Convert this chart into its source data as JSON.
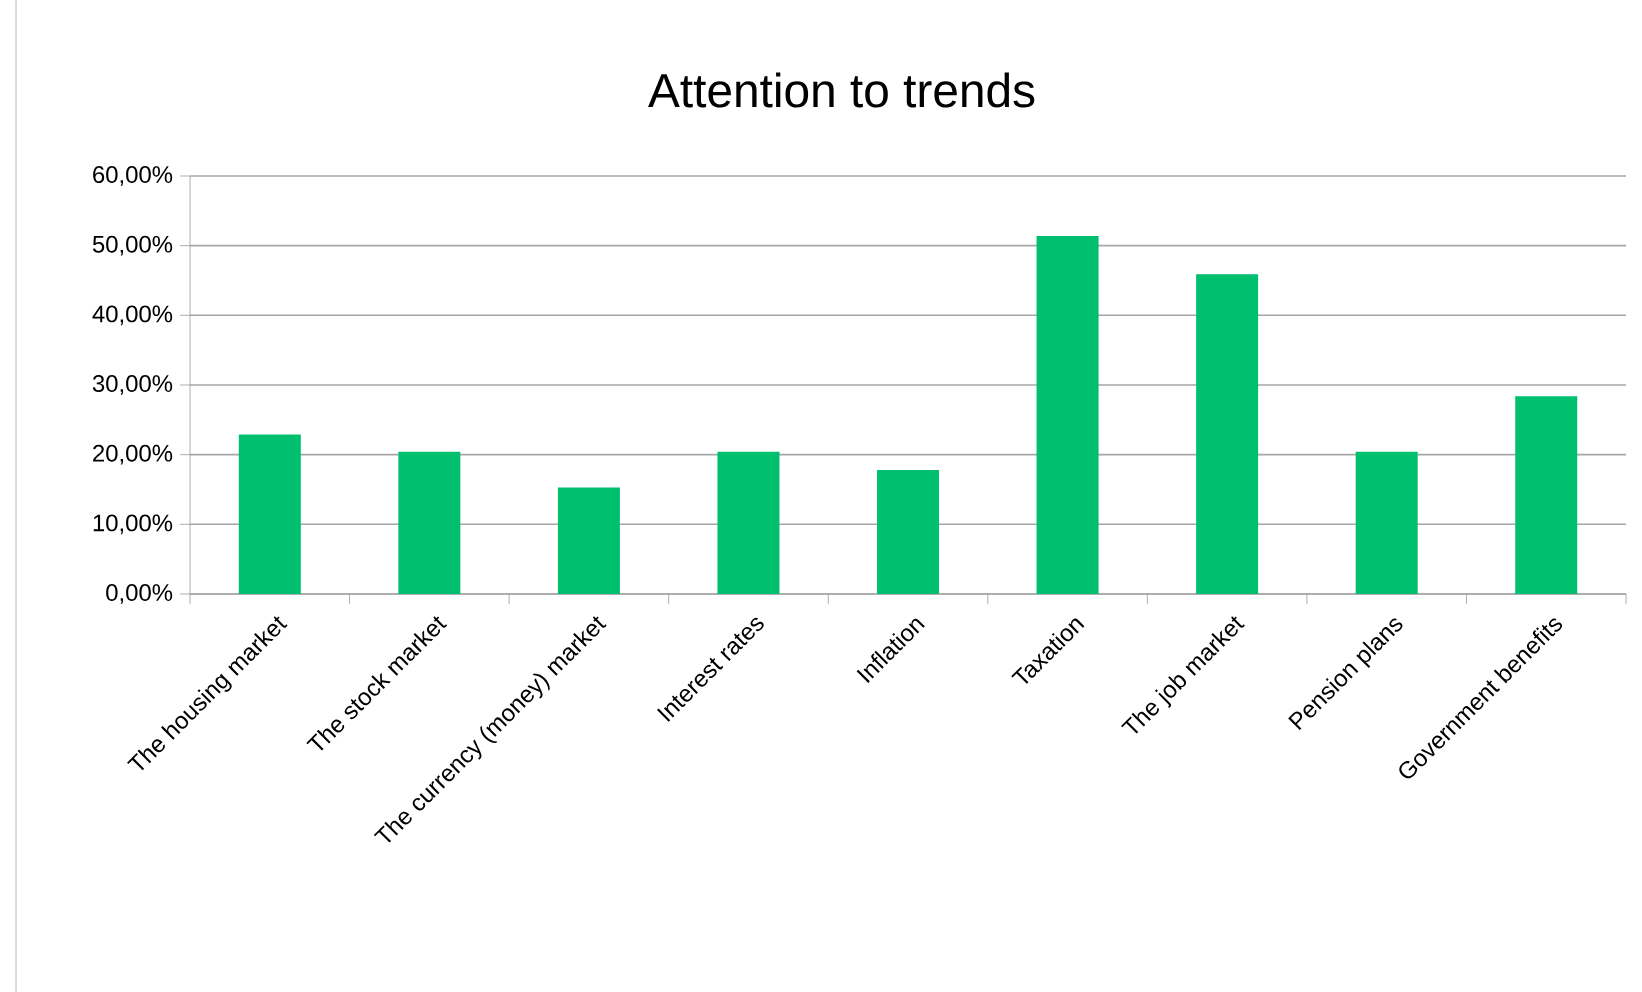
{
  "chart_data": {
    "type": "bar",
    "title": "Attention to trends",
    "categories": [
      "The housing market",
      "The stock market",
      "The currency (money) market",
      "Interest rates",
      "Inflation",
      "Taxation",
      "The job market",
      "Pension plans",
      "Government benefits"
    ],
    "values": [
      22.9,
      20.4,
      15.3,
      20.4,
      17.8,
      51.4,
      45.9,
      20.4,
      28.4
    ],
    "color": "#00bf6f",
    "ylim": [
      0,
      60
    ],
    "yticks": [
      {
        "value": 0,
        "label": "0,00%"
      },
      {
        "value": 10,
        "label": "10,00%"
      },
      {
        "value": 20,
        "label": "20,00%"
      },
      {
        "value": 30,
        "label": "30,00%"
      },
      {
        "value": 40,
        "label": "40,00%"
      },
      {
        "value": 50,
        "label": "50,00%"
      },
      {
        "value": 60,
        "label": "60,00%"
      }
    ],
    "grid": "y"
  }
}
